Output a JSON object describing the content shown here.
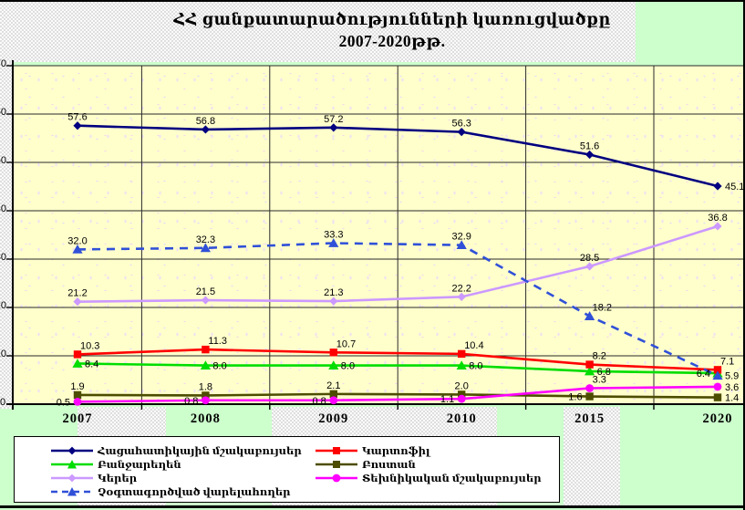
{
  "title": {
    "line1": "ՀՀ ցանքատարածությունների կառուցվածքը",
    "line2": "2007-2020թթ."
  },
  "colors": {
    "page_bg": "#ccffcc",
    "plot_bg": "#ffffcc",
    "legend_bg": "#ffffff",
    "grid": "#2a2a2a",
    "axis": "#000000",
    "label_text": "#000000"
  },
  "chart_data": {
    "type": "line",
    "title": "ՀՀ ցանքատարածությունների կառուցվածքը 2007-2020թթ.",
    "categories": [
      "2007",
      "2008",
      "2009",
      "2010",
      "2015",
      "2020"
    ],
    "ylim": [
      0,
      70
    ],
    "ytick_step": 10,
    "grid": "both",
    "legend_position": "bottom",
    "value_decimals": 1,
    "series": [
      {
        "name": "Հացահատիկային մշակաբույսեր",
        "color": "#000080",
        "marker": "diamond",
        "line_style": "solid",
        "values": [
          57.6,
          56.8,
          57.2,
          56.3,
          51.6,
          45.1
        ],
        "label_pos": [
          "above",
          "above",
          "above",
          "above",
          "above",
          "right"
        ]
      },
      {
        "name": "Կարտոֆիլ",
        "color": "#ff0000",
        "marker": "square",
        "line_style": "solid",
        "values": [
          10.3,
          11.3,
          10.7,
          10.4,
          8.2,
          7.1
        ],
        "label_pos": [
          "above-right",
          "above-right",
          "above-right",
          "above-right",
          "above-right",
          "above-right"
        ]
      },
      {
        "name": "Բանջարեղեն",
        "color": "#00dd00",
        "marker": "triangle",
        "line_style": "solid",
        "values": [
          8.4,
          8.0,
          8.0,
          8.0,
          6.8,
          6.4
        ],
        "label_pos": [
          "right",
          "right",
          "right",
          "right",
          "right",
          "left"
        ]
      },
      {
        "name": "Բոստան",
        "color": "#4d4d00",
        "marker": "square",
        "line_style": "solid",
        "values": [
          1.9,
          1.8,
          2.1,
          2.0,
          1.6,
          1.4
        ],
        "label_pos": [
          "above",
          "above",
          "above",
          "above",
          "left",
          "right"
        ]
      },
      {
        "name": "Կերեր",
        "color": "#cc99ff",
        "marker": "diamond",
        "line_style": "solid",
        "values": [
          21.2,
          21.5,
          21.3,
          22.2,
          28.5,
          36.8
        ],
        "label_pos": [
          "above",
          "above",
          "above",
          "above",
          "above",
          "above"
        ]
      },
      {
        "name": "Տեխնիկական մշակաբույսեր",
        "color": "#ff00ff",
        "marker": "circle",
        "line_style": "solid",
        "values": [
          0.5,
          0.8,
          0.8,
          1.1,
          3.3,
          3.6
        ],
        "label_pos": [
          "left",
          "left",
          "left",
          "left",
          "above-right",
          "right"
        ]
      },
      {
        "name": "Չօգտագործված վարելահողեր",
        "color": "#3050d8",
        "marker": "triangle",
        "line_style": "dashed",
        "values": [
          32.0,
          32.3,
          33.3,
          32.9,
          18.2,
          5.9
        ],
        "label_pos": [
          "above",
          "above",
          "above",
          "above",
          "above-right",
          "right"
        ]
      }
    ],
    "draw_order": [
      4,
      2,
      3,
      5,
      1,
      6,
      0
    ],
    "legend_columns": [
      [
        0,
        2,
        4,
        6
      ],
      [
        1,
        3,
        5
      ]
    ]
  }
}
